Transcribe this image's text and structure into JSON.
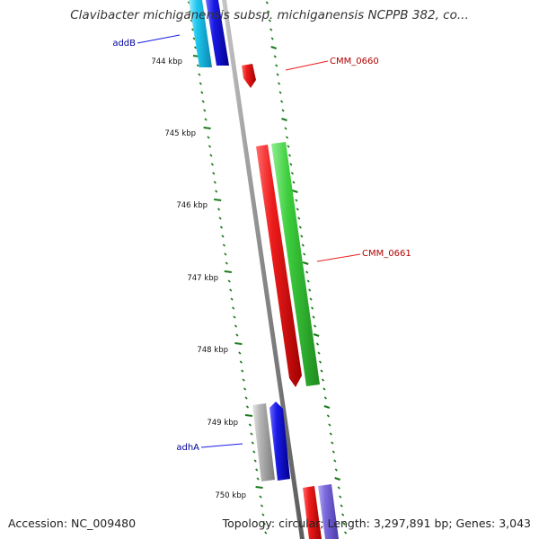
{
  "title": "Clavibacter michiganensis subsp. michiganensis NCPPB 382, co...",
  "accession": "Accession: NC_009480",
  "topology": "Topology: circular; Length: 3,297,891 bp; Genes: 3,043",
  "ruler": {
    "labels": [
      "744 kbp",
      "745 kbp",
      "746 kbp",
      "747 kbp",
      "748 kbp",
      "749 kbp",
      "750 kbp"
    ],
    "color": "#1a7a1a"
  },
  "gene_labels": [
    {
      "id": "addB",
      "text": "addB",
      "color": "#00009b"
    },
    {
      "id": "CMM_0660",
      "text": "CMM_0660",
      "color": "#b40000"
    },
    {
      "id": "CMM_0661",
      "text": "CMM_0661",
      "color": "#b40000"
    },
    {
      "id": "adhA",
      "text": "adhA",
      "color": "#00009b"
    }
  ],
  "colors": {
    "red": "#ee1c1c",
    "green": "#3ccd3c",
    "blue": "#1a1ae6",
    "cyan": "#1ec8f0",
    "gray": "#b4b4b4",
    "purple": "#7a6adc",
    "backbone": "#888888"
  }
}
